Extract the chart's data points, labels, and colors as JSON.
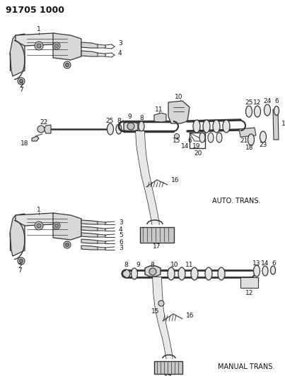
{
  "title": "91705 1000",
  "bg_color": "#ffffff",
  "line_color": "#333333",
  "text_color": "#111111",
  "label_fontsize": 6.5,
  "title_fontsize": 9,
  "fig_width": 4.03,
  "fig_height": 5.33,
  "dpi": 100,
  "auto_trans_label": "AUTO. TRANS.",
  "manual_trans_label": "MANUAL TRANS."
}
